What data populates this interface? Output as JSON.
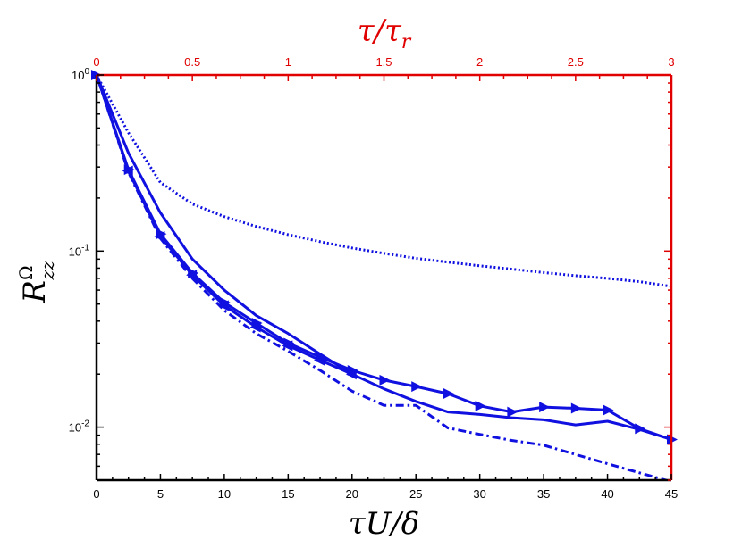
{
  "chart_data": {
    "type": "line",
    "title": "",
    "xlabel": "τU/δ",
    "x2label": "τ/τ_r",
    "ylabel": "R_zz^Ω",
    "xlim": [
      0,
      45
    ],
    "x2lim": [
      0,
      3
    ],
    "ylim": [
      0.005,
      1
    ],
    "yscale": "log",
    "grid": false,
    "x_ticks": [
      0,
      5,
      10,
      15,
      20,
      25,
      30,
      35,
      40,
      45
    ],
    "x_tick_labels": [
      "0",
      "5",
      "10",
      "15",
      "20",
      "25",
      "30",
      "35",
      "40",
      "45"
    ],
    "x2_ticks": [
      0,
      0.5,
      1,
      1.5,
      2,
      2.5,
      3
    ],
    "x2_tick_labels": [
      "0",
      "0.5",
      "1",
      "1.5",
      "2",
      "2.5",
      "3"
    ],
    "y_ticks": [
      0.01,
      0.1,
      1
    ],
    "y_tick_labels": [
      {
        "base": "10",
        "exp": "-2"
      },
      {
        "base": "10",
        "exp": "-1"
      },
      {
        "base": "10",
        "exp": "0"
      }
    ],
    "colors": {
      "series": "#1010e0",
      "top_axis": "#e00000",
      "right_axis": "#e00000",
      "axes": "#000000"
    },
    "series": [
      {
        "style": "dotted",
        "marker": "none",
        "x": [
          0,
          2.5,
          5,
          7.5,
          10,
          12.5,
          15,
          17.5,
          20,
          22.5,
          25,
          27.5,
          30,
          32.5,
          35,
          37.5,
          40,
          42.5,
          45
        ],
        "y": [
          1.0,
          0.47,
          0.245,
          0.185,
          0.157,
          0.138,
          0.124,
          0.113,
          0.104,
          0.097,
          0.091,
          0.0865,
          0.0825,
          0.079,
          0.0755,
          0.0725,
          0.07,
          0.067,
          0.063
        ]
      },
      {
        "style": "solid",
        "marker": "none",
        "x": [
          0,
          2.5,
          5,
          7.5,
          10,
          12.5,
          15,
          17.5,
          20,
          22.5,
          25,
          27.5,
          30,
          32.5,
          35,
          37.5,
          40,
          42.5,
          45
        ],
        "y": [
          1.0,
          0.36,
          0.165,
          0.09,
          0.06,
          0.043,
          0.034,
          0.026,
          0.02,
          0.0165,
          0.014,
          0.0122,
          0.0118,
          0.0113,
          0.011,
          0.0103,
          0.0108,
          0.0097,
          0.0085
        ]
      },
      {
        "style": "solid",
        "marker": "triangle-right",
        "x": [
          0,
          2.5,
          5,
          7.5,
          10,
          12.5,
          15,
          17.5,
          20,
          22.5,
          25,
          27.5,
          30,
          32.5,
          35,
          37.5,
          40,
          42.5,
          45
        ],
        "y": [
          1.0,
          0.29,
          0.125,
          0.075,
          0.051,
          0.039,
          0.03,
          0.025,
          0.021,
          0.0185,
          0.017,
          0.0155,
          0.0132,
          0.0122,
          0.013,
          0.0128,
          0.0125,
          0.0098,
          0.0085
        ]
      },
      {
        "style": "dashdot",
        "marker": "none",
        "x": [
          0,
          2.5,
          5,
          7.5,
          10,
          12.5,
          15,
          17.5,
          20,
          22.5,
          25,
          27.5,
          30,
          32.5,
          35,
          37.5,
          40,
          42.5,
          45
        ],
        "y": [
          1.0,
          0.28,
          0.118,
          0.07,
          0.046,
          0.034,
          0.027,
          0.021,
          0.016,
          0.0133,
          0.0133,
          0.0099,
          0.0091,
          0.0084,
          0.0079,
          0.007,
          0.0062,
          0.0055,
          0.0049
        ]
      },
      {
        "style": "solid",
        "marker": "triangle-left",
        "x": [
          0,
          2.5,
          5,
          7.5,
          10,
          12.5,
          15,
          17.5,
          20
        ],
        "y": [
          1.0,
          0.285,
          0.121,
          0.073,
          0.049,
          0.037,
          0.029,
          0.024,
          0.02
        ]
      }
    ]
  }
}
